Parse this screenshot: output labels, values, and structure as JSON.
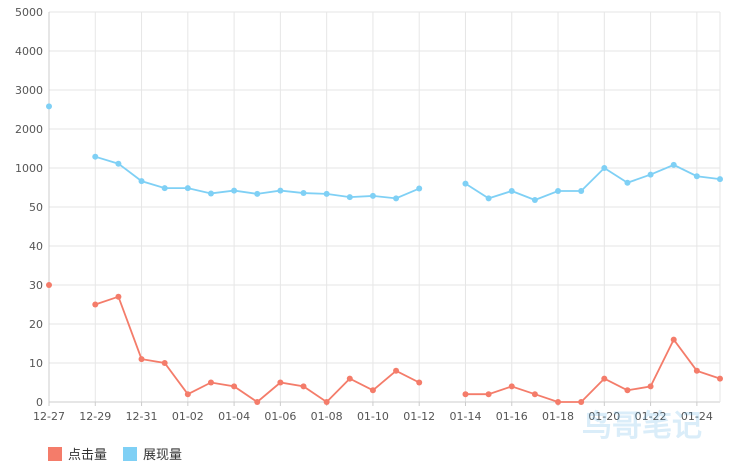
{
  "chart_data": {
    "type": "line",
    "y_ticks": [
      "5000",
      "4000",
      "3000",
      "2000",
      "1000",
      "50",
      "40",
      "30",
      "20",
      "10",
      "0"
    ],
    "x_tick_labels": [
      "12-27",
      "12-29",
      "12-31",
      "01-02",
      "01-04",
      "01-06",
      "01-08",
      "01-10",
      "01-12",
      "01-14",
      "01-16",
      "01-18",
      "01-20",
      "01-22",
      "01-24"
    ],
    "x": [
      "12-27",
      "12-28",
      "12-29",
      "12-30",
      "12-31",
      "01-01",
      "01-02",
      "01-03",
      "01-04",
      "01-05",
      "01-06",
      "01-07",
      "01-08",
      "01-09",
      "01-10",
      "01-11",
      "01-12",
      "01-13",
      "01-14",
      "01-15",
      "01-16",
      "01-17",
      "01-18",
      "01-19",
      "01-20",
      "01-21",
      "01-22",
      "01-23",
      "01-24",
      "01-25"
    ],
    "series": [
      {
        "name": "点击量",
        "color": "#f47c6a",
        "values": [
          30,
          null,
          25,
          27,
          11,
          10,
          2,
          5,
          4,
          0,
          5,
          4,
          0,
          6,
          3,
          8,
          5,
          null,
          2,
          2,
          4,
          2,
          0,
          0,
          6,
          3,
          4,
          16,
          8,
          6
        ]
      },
      {
        "name": "展现量",
        "color": "#7fd0f5",
        "values": [
          2580,
          null,
          1290,
          1110,
          680,
          510,
          510,
          380,
          450,
          370,
          450,
          390,
          370,
          290,
          320,
          260,
          500,
          null,
          620,
          260,
          440,
          220,
          440,
          440,
          1000,
          640,
          840,
          1080,
          800,
          730
        ]
      }
    ],
    "grid": true,
    "legend_position": "bottom-left"
  },
  "watermark": "鸟哥笔记"
}
